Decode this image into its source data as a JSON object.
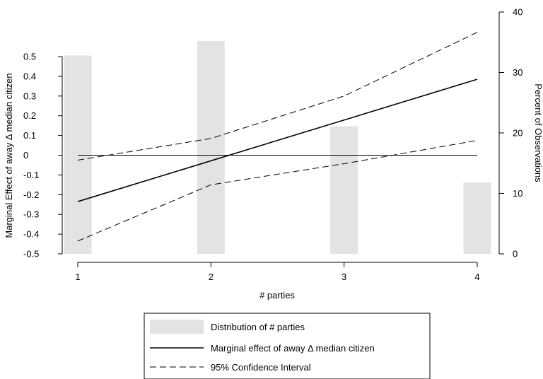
{
  "chart_data": {
    "type": "line",
    "x": [
      1,
      2,
      3,
      4
    ],
    "xlim": [
      0.95,
      4.05
    ],
    "xticks": [
      "1",
      "2",
      "3",
      "4"
    ],
    "xlabel": "# parties",
    "left_axis": {
      "label": "Marginal Effect of away Δ median citizen",
      "ylim": [
        -0.5,
        0.5
      ],
      "ticks": [
        "0.5",
        "0.4",
        "0.3",
        "0.2",
        "0.1",
        "0",
        "-0.1",
        "-0.2",
        "-0.3",
        "-0.4",
        "-0.5"
      ]
    },
    "right_axis": {
      "label": "Percent of Observations",
      "ylim": [
        0,
        40
      ],
      "ticks": [
        "0",
        "10",
        "20",
        "30",
        "40"
      ]
    },
    "series": [
      {
        "name": "Distribution of # parties",
        "kind": "bar",
        "axis": "right",
        "color": "#e3e3e3",
        "x": [
          1,
          2,
          3,
          4
        ],
        "values": [
          32.8,
          35.2,
          21.1,
          11.8
        ]
      },
      {
        "name": "Marginal effect of away Δ median citizen",
        "kind": "line",
        "axis": "left",
        "style": "solid",
        "color": "#000000",
        "x": [
          1,
          4
        ],
        "values": [
          -0.235,
          0.385
        ]
      },
      {
        "name": "95% Confidence Interval",
        "kind": "line",
        "axis": "left",
        "style": "dashed",
        "color": "#000000",
        "x": [
          1,
          2,
          3,
          4
        ],
        "values": [
          -0.025,
          0.085,
          0.3,
          0.623
        ]
      },
      {
        "name": "",
        "kind": "line",
        "axis": "left",
        "style": "dashed",
        "color": "#000000",
        "x": [
          1,
          2,
          3,
          4
        ],
        "values": [
          -0.435,
          -0.15,
          -0.043,
          0.075
        ]
      }
    ],
    "reference_line": {
      "axis": "left",
      "value": 0
    },
    "legend": {
      "position": "bottom-center",
      "entries": [
        "Distribution of # parties",
        "Marginal effect of away Δ median citizen",
        "95% Confidence Interval"
      ]
    },
    "grid": false
  }
}
